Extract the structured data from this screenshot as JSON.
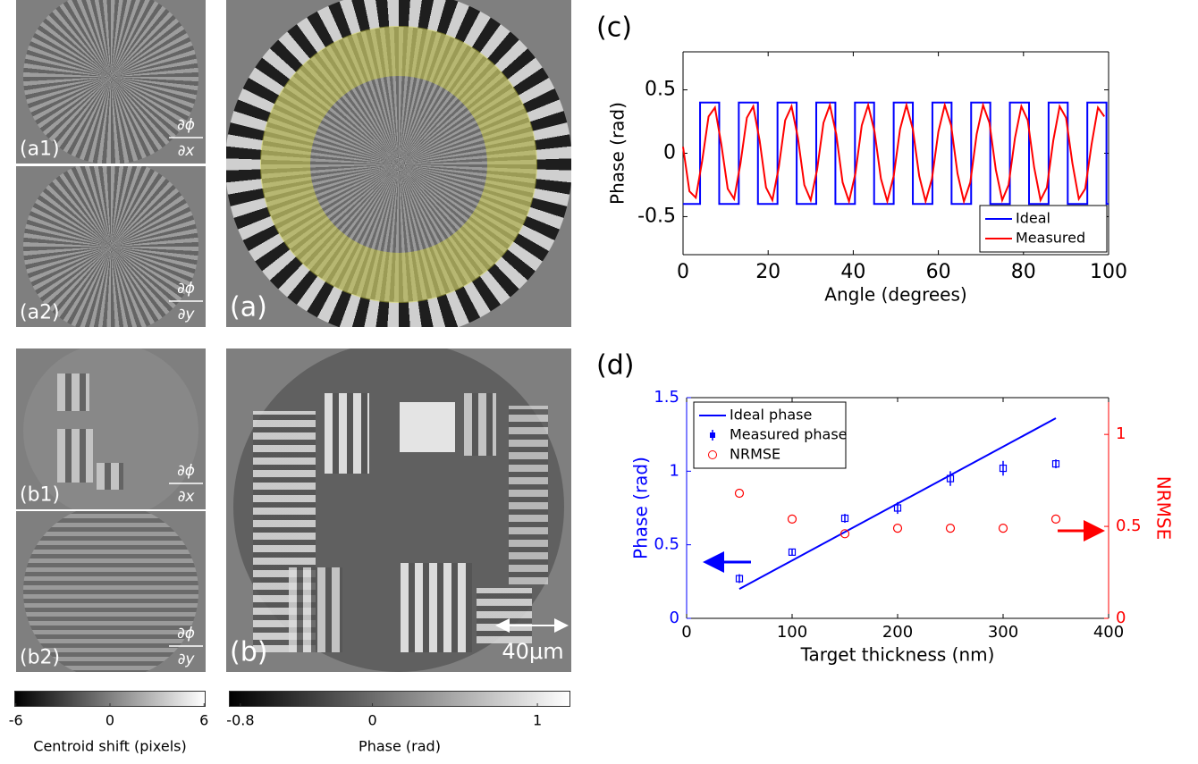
{
  "panels": [
    {
      "label": "(a1)",
      "numerator": "∂ϕ",
      "denominator": "∂x"
    },
    {
      "label": "(a2)",
      "numerator": "∂ϕ",
      "denominator": "∂y"
    },
    {
      "label": "(a)"
    },
    {
      "label": "(b1)",
      "numerator": "∂ϕ",
      "denominator": "∂x"
    },
    {
      "label": "(b2)",
      "numerator": "∂ϕ",
      "denominator": "∂y"
    },
    {
      "label": "(b)",
      "scale_bar": "40μm"
    }
  ],
  "colorbars": [
    {
      "label": "Centroid shift (pixels)",
      "lim": [
        -6.1,
        6.1
      ],
      "ticks": [
        -6,
        0,
        6
      ]
    },
    {
      "label": "Phase (rad)",
      "lim": [
        -0.87,
        1.2
      ],
      "ticks": [
        -0.8,
        0,
        1
      ]
    }
  ],
  "chart_data": [
    {
      "type": "line",
      "panel_label": "(c)",
      "xlabel": "Angle (degrees)",
      "ylabel": "Phase (rad)",
      "xlim": [
        0,
        100
      ],
      "ylim": [
        -0.8,
        0.8
      ],
      "xticks": [
        0,
        20,
        40,
        60,
        80,
        100
      ],
      "yticks": [
        -0.5,
        0,
        0.5
      ],
      "legend": "lower right",
      "series": [
        {
          "name": "Ideal",
          "color": "#0000ff",
          "x": [
            0,
            4,
            4,
            8.5,
            8.5,
            13.1,
            13.1,
            17.6,
            17.6,
            22.2,
            22.2,
            26.7,
            26.7,
            31.3,
            31.3,
            35.8,
            35.8,
            40.4,
            40.4,
            44.9,
            44.9,
            49.5,
            49.5,
            54,
            54,
            58.6,
            58.6,
            63.1,
            63.1,
            67.7,
            67.7,
            72.2,
            72.2,
            76.8,
            76.8,
            81.3,
            81.3,
            85.9,
            85.9,
            90.4,
            90.4,
            95,
            95,
            99.5,
            99.5,
            100
          ],
          "values": [
            -0.4,
            -0.4,
            0.4,
            0.4,
            -0.4,
            -0.4,
            0.4,
            0.4,
            -0.4,
            -0.4,
            0.4,
            0.4,
            -0.4,
            -0.4,
            0.4,
            0.4,
            -0.4,
            -0.4,
            0.4,
            0.4,
            -0.4,
            -0.4,
            0.4,
            0.4,
            -0.4,
            -0.4,
            0.4,
            0.4,
            -0.4,
            -0.4,
            0.4,
            0.4,
            -0.4,
            -0.4,
            0.4,
            0.4,
            -0.4,
            -0.4,
            0.4,
            0.4,
            -0.4,
            -0.4,
            0.4,
            0.4,
            -0.4,
            -0.4
          ]
        },
        {
          "name": "Measured",
          "color": "#ff0000",
          "x": [
            0,
            1.5,
            3,
            4.5,
            6,
            7.5,
            9,
            10.5,
            12,
            13.5,
            15,
            16.5,
            18,
            19.5,
            21,
            22.5,
            24,
            25.5,
            27,
            28.5,
            30,
            31.5,
            33,
            34.5,
            36,
            37.5,
            39,
            40.5,
            42,
            43.5,
            45,
            46.5,
            48,
            49.5,
            51,
            52.5,
            54,
            55.5,
            57,
            58.5,
            60,
            61.5,
            63,
            64.5,
            66,
            67.5,
            69,
            70.5,
            72,
            73.5,
            75,
            76.5,
            78,
            79.5,
            81,
            82.5,
            84,
            85.5,
            87,
            88.5,
            90,
            91.5,
            93,
            94.5,
            96,
            97.5,
            99
          ],
          "values": [
            0.05,
            -0.3,
            -0.35,
            -0.06,
            0.29,
            0.36,
            0.07,
            -0.28,
            -0.36,
            -0.08,
            0.28,
            0.37,
            0.1,
            -0.27,
            -0.37,
            -0.11,
            0.26,
            0.37,
            0.12,
            -0.25,
            -0.37,
            -0.13,
            0.24,
            0.38,
            0.15,
            -0.23,
            -0.38,
            -0.16,
            0.22,
            0.38,
            0.17,
            -0.2,
            -0.38,
            -0.18,
            0.19,
            0.38,
            0.19,
            -0.18,
            -0.38,
            -0.2,
            0.17,
            0.38,
            0.22,
            -0.16,
            -0.38,
            -0.23,
            0.15,
            0.38,
            0.24,
            -0.13,
            -0.37,
            -0.25,
            0.12,
            0.37,
            0.26,
            -0.11,
            -0.37,
            -0.27,
            0.1,
            0.37,
            0.28,
            -0.08,
            -0.36,
            -0.28,
            0.07,
            0.36,
            0.29
          ]
        }
      ]
    },
    {
      "type": "dual_axis",
      "panel_label": "(d)",
      "xlabel": "Target thickness (nm)",
      "ylabel": "Phase (rad)",
      "y2label": "NRMSE",
      "xlim": [
        0,
        400
      ],
      "ylim": [
        0,
        1.5
      ],
      "y2lim": [
        0,
        1.2
      ],
      "xticks": [
        0,
        100,
        200,
        300,
        400
      ],
      "yticks": [
        0,
        0.5,
        1,
        1.5
      ],
      "y2ticks": [
        0,
        0.5,
        1
      ],
      "legend": "upper left",
      "series": [
        {
          "name": "Ideal phase",
          "type": "line",
          "color": "#0000ff",
          "x": [
            50,
            350
          ],
          "values": [
            0.2,
            1.36
          ]
        },
        {
          "name": "Measured phase",
          "type": "errorbar",
          "color": "#0000ff",
          "x": [
            50,
            100,
            150,
            200,
            250,
            300,
            350
          ],
          "values": [
            0.27,
            0.45,
            0.68,
            0.75,
            0.95,
            1.02,
            1.05
          ],
          "errors": [
            0.03,
            0.02,
            0.03,
            0.04,
            0.05,
            0.05,
            0.03
          ]
        },
        {
          "name": "NRMSE",
          "type": "scatter",
          "color": "#ff0000",
          "axis": "y2",
          "x": [
            50,
            100,
            150,
            200,
            250,
            300,
            350
          ],
          "values": [
            0.68,
            0.54,
            0.46,
            0.49,
            0.49,
            0.49,
            0.54
          ]
        }
      ]
    }
  ]
}
